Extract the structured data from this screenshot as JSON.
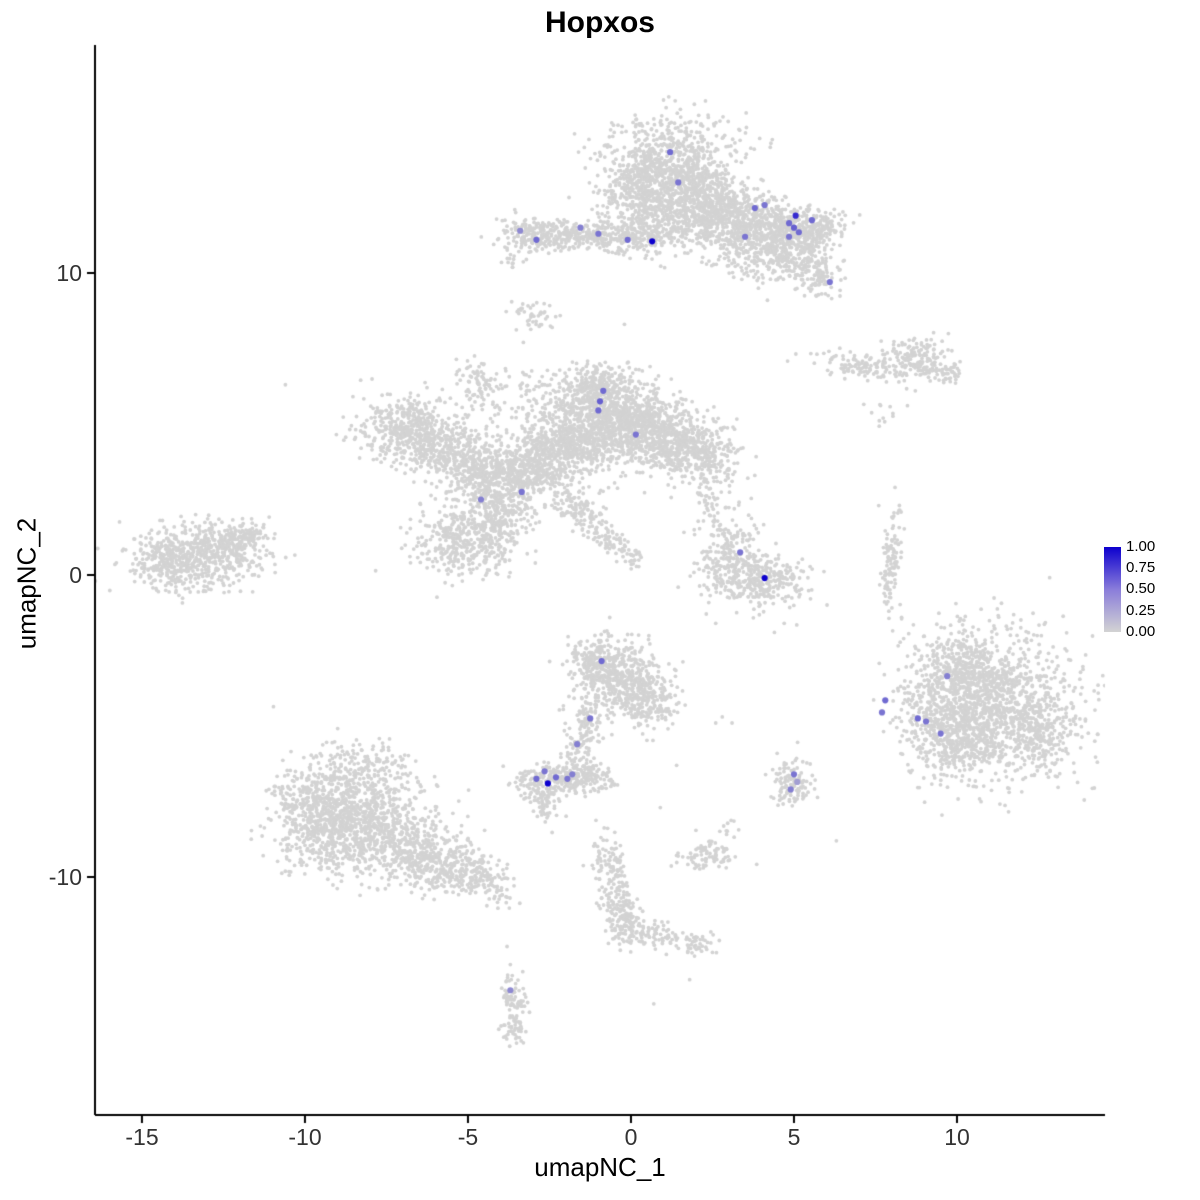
{
  "title": "Hopxos",
  "axes": {
    "x": {
      "label": "umapNC_1",
      "ticks": [
        "-15",
        "-10",
        "-5",
        "0",
        "5",
        "10"
      ],
      "tick_values": [
        -15,
        -10,
        -5,
        0,
        5,
        10
      ]
    },
    "y": {
      "label": "umapNC_2",
      "ticks": [
        "10",
        "0",
        "-10"
      ],
      "tick_values": [
        10,
        0,
        -10
      ]
    }
  },
  "legend": {
    "labels": [
      "1.00",
      "0.75",
      "0.50",
      "0.25",
      "0.00"
    ],
    "high_color": "#0d00ce",
    "mid_color": "#8a7dda",
    "low_color": "#d3d3d3"
  },
  "chart_data": {
    "type": "scatter",
    "title": "Hopxos",
    "xlabel": "umapNC_1",
    "ylabel": "umapNC_2",
    "xlim": [
      -16.44,
      14.54
    ],
    "ylim": [
      -17.88,
      17.55
    ],
    "grid": false,
    "legend_position": "right",
    "background_point_color": "#d3d3d3",
    "expression_low_color": "#d3d3d3",
    "expression_high_color": "#0d00ce",
    "color_scale_range": [
      0.0,
      1.0
    ],
    "clusters": [
      [
        1.3,
        13.4,
        1.05,
        0.85,
        950,
        0
      ],
      [
        0.3,
        12.6,
        0.5,
        0.5,
        200,
        0
      ],
      [
        2.2,
        12.3,
        0.8,
        0.55,
        350,
        0
      ],
      [
        3.2,
        11.9,
        0.6,
        0.45,
        250,
        0
      ],
      [
        4.5,
        11.5,
        0.75,
        0.45,
        350,
        0
      ],
      [
        5.6,
        11.4,
        0.45,
        0.35,
        180,
        0
      ],
      [
        5.1,
        10.5,
        0.45,
        0.45,
        140,
        0
      ],
      [
        5.8,
        9.9,
        0.35,
        0.35,
        90,
        0
      ],
      [
        4.2,
        10.7,
        0.6,
        0.5,
        140,
        0
      ],
      [
        3.4,
        10.9,
        0.7,
        0.5,
        100,
        0
      ],
      [
        2.0,
        11.5,
        0.5,
        0.4,
        120,
        0
      ],
      [
        -1.4,
        11.25,
        1.1,
        0.22,
        260,
        0
      ],
      [
        -2.95,
        11.3,
        0.5,
        0.3,
        130,
        0
      ],
      [
        0.0,
        11.15,
        0.85,
        0.28,
        170,
        0
      ],
      [
        0.7,
        11.7,
        0.5,
        0.45,
        90,
        0
      ],
      [
        -3.6,
        10.5,
        0.15,
        0.15,
        14,
        0
      ],
      [
        -3.0,
        8.6,
        0.3,
        0.22,
        45,
        0
      ],
      [
        7.0,
        6.9,
        0.75,
        0.22,
        110,
        -12
      ],
      [
        8.7,
        7.15,
        0.55,
        0.35,
        160,
        0
      ],
      [
        9.6,
        6.7,
        0.3,
        0.2,
        50,
        0
      ],
      [
        7.9,
        5.4,
        0.25,
        0.3,
        12,
        0
      ],
      [
        -6.9,
        4.9,
        0.75,
        0.55,
        400,
        0
      ],
      [
        -5.9,
        4.3,
        0.6,
        0.5,
        250,
        0
      ],
      [
        -4.8,
        3.6,
        0.65,
        0.5,
        280,
        0
      ],
      [
        -3.7,
        3.2,
        0.65,
        0.5,
        280,
        0
      ],
      [
        -2.7,
        3.7,
        0.6,
        0.55,
        300,
        0
      ],
      [
        -1.7,
        4.6,
        0.85,
        0.8,
        650,
        0
      ],
      [
        -0.6,
        5.3,
        0.8,
        0.7,
        600,
        0
      ],
      [
        0.5,
        4.8,
        0.75,
        0.6,
        450,
        0
      ],
      [
        1.5,
        4.3,
        0.65,
        0.5,
        300,
        0
      ],
      [
        2.3,
        3.9,
        0.5,
        0.4,
        180,
        0
      ],
      [
        -1.1,
        6.3,
        0.5,
        0.35,
        180,
        0
      ],
      [
        -4.6,
        6.2,
        0.3,
        0.55,
        80,
        25
      ],
      [
        -5.1,
        1.2,
        0.75,
        0.65,
        430,
        0
      ],
      [
        -4.0,
        2.0,
        0.55,
        0.5,
        220,
        0
      ],
      [
        -1.7,
        2.3,
        0.5,
        0.28,
        100,
        -35
      ],
      [
        -0.8,
        1.4,
        0.45,
        0.25,
        75,
        -35
      ],
      [
        -0.1,
        0.75,
        0.3,
        0.18,
        40,
        -35
      ],
      [
        -3.4,
        6.2,
        0.9,
        0.35,
        45,
        0
      ],
      [
        -13.4,
        0.6,
        0.95,
        0.55,
        480,
        0
      ],
      [
        -14.2,
        0.4,
        0.5,
        0.4,
        150,
        0
      ],
      [
        -12.3,
        1.0,
        0.5,
        0.35,
        160,
        0
      ],
      [
        -11.7,
        1.3,
        0.3,
        0.18,
        55,
        0
      ],
      [
        3.9,
        -0.25,
        0.8,
        0.45,
        330,
        0
      ],
      [
        3.1,
        0.6,
        0.4,
        0.5,
        150,
        0
      ],
      [
        2.9,
        1.8,
        0.55,
        0.5,
        55,
        0
      ],
      [
        2.4,
        2.7,
        0.18,
        0.35,
        28,
        0
      ],
      [
        8.0,
        0.9,
        0.16,
        0.5,
        55,
        0
      ],
      [
        7.9,
        -0.4,
        0.14,
        0.45,
        45,
        0
      ],
      [
        8.1,
        2.1,
        0.13,
        0.18,
        9,
        0
      ],
      [
        11.3,
        -4.3,
        1.25,
        1.15,
        1150,
        0
      ],
      [
        10.0,
        -5.4,
        0.65,
        0.75,
        380,
        0
      ],
      [
        10.2,
        -3.3,
        0.6,
        0.55,
        280,
        0
      ],
      [
        9.1,
        -4.5,
        0.5,
        0.8,
        120,
        0
      ],
      [
        9.6,
        -2.3,
        0.65,
        0.5,
        50,
        0
      ],
      [
        12.4,
        -5.3,
        0.5,
        0.5,
        150,
        0
      ],
      [
        -0.4,
        -3.4,
        0.7,
        0.6,
        430,
        0
      ],
      [
        0.4,
        -4.2,
        0.5,
        0.5,
        200,
        0
      ],
      [
        -1.0,
        -2.9,
        0.4,
        0.4,
        150,
        0
      ],
      [
        -1.3,
        -4.9,
        0.22,
        0.5,
        75,
        0
      ],
      [
        -1.7,
        -5.8,
        0.22,
        0.4,
        55,
        0
      ],
      [
        -2.4,
        -6.8,
        0.65,
        0.33,
        240,
        0
      ],
      [
        -2.6,
        -7.6,
        0.2,
        0.3,
        50,
        0
      ],
      [
        -1.3,
        -6.7,
        0.3,
        0.25,
        70,
        0
      ],
      [
        -0.75,
        -6.8,
        0.15,
        0.15,
        18,
        0
      ],
      [
        4.9,
        -6.9,
        0.33,
        0.38,
        110,
        0
      ],
      [
        -8.7,
        -7.5,
        1.05,
        0.85,
        650,
        0
      ],
      [
        -7.6,
        -8.6,
        0.85,
        0.75,
        450,
        0
      ],
      [
        -9.5,
        -8.7,
        0.6,
        0.55,
        230,
        0
      ],
      [
        -6.4,
        -9.3,
        0.65,
        0.5,
        230,
        0
      ],
      [
        -5.3,
        -9.7,
        0.55,
        0.4,
        170,
        0
      ],
      [
        -4.6,
        -10.1,
        0.4,
        0.3,
        80,
        0
      ],
      [
        -8.2,
        -6.3,
        0.8,
        0.4,
        70,
        0
      ],
      [
        -10.1,
        -7.6,
        0.5,
        0.6,
        120,
        0
      ],
      [
        -3.9,
        -10.6,
        0.25,
        0.25,
        22,
        0
      ],
      [
        -0.7,
        -9.5,
        0.25,
        0.5,
        75,
        0
      ],
      [
        -0.45,
        -10.5,
        0.25,
        0.5,
        75,
        0
      ],
      [
        -0.15,
        -11.5,
        0.3,
        0.4,
        120,
        0
      ],
      [
        0.8,
        -11.9,
        0.5,
        0.22,
        70,
        -15
      ],
      [
        1.9,
        -12.25,
        0.4,
        0.18,
        45,
        0
      ],
      [
        2.4,
        -9.3,
        0.45,
        0.28,
        85,
        0
      ],
      [
        2.95,
        -8.45,
        0.15,
        0.15,
        10,
        0
      ],
      [
        -3.6,
        -14.2,
        0.24,
        0.5,
        85,
        0
      ],
      [
        -3.55,
        -15.05,
        0.2,
        0.22,
        28,
        0
      ]
    ],
    "singles": [
      [
        -10.6,
        6.3
      ],
      [
        -1.9,
        12.5
      ],
      [
        2.1,
        2.9
      ],
      [
        4.4,
        -1.9
      ],
      [
        4.7,
        -1.6
      ],
      [
        8.3,
        -1.4
      ],
      [
        2.6,
        -1.6
      ],
      [
        2.8,
        -4.7
      ],
      [
        3.1,
        -4.9
      ],
      [
        2.6,
        -4.9
      ],
      [
        1.4,
        -6.3
      ],
      [
        0.9,
        -7.7
      ],
      [
        -3.8,
        -12.3
      ],
      [
        -3.7,
        -12.9
      ],
      [
        6.3,
        -8.8
      ],
      [
        7.6,
        2.3
      ],
      [
        8.1,
        2.9
      ],
      [
        -0.2,
        8.3
      ],
      [
        -3.3,
        7.7
      ],
      [
        0.7,
        -14.2
      ],
      [
        1.8,
        -13.4
      ]
    ],
    "expressing_cells": [
      {
        "x": 1.2,
        "y": 14.0,
        "value": 0.5
      },
      {
        "x": 1.45,
        "y": 13.0,
        "value": 0.45
      },
      {
        "x": 3.8,
        "y": 12.15,
        "value": 0.5
      },
      {
        "x": 4.1,
        "y": 12.25,
        "value": 0.45
      },
      {
        "x": 5.05,
        "y": 11.9,
        "value": 0.8
      },
      {
        "x": 4.85,
        "y": 11.65,
        "value": 0.5
      },
      {
        "x": 5.0,
        "y": 11.5,
        "value": 0.55
      },
      {
        "x": 5.15,
        "y": 11.35,
        "value": 0.5
      },
      {
        "x": 4.85,
        "y": 11.2,
        "value": 0.45
      },
      {
        "x": 5.55,
        "y": 11.75,
        "value": 0.5
      },
      {
        "x": 3.5,
        "y": 11.2,
        "value": 0.45
      },
      {
        "x": 0.65,
        "y": 11.05,
        "value": 1.0
      },
      {
        "x": -0.1,
        "y": 11.1,
        "value": 0.5
      },
      {
        "x": -1.0,
        "y": 11.3,
        "value": 0.45
      },
      {
        "x": -1.55,
        "y": 11.5,
        "value": 0.4
      },
      {
        "x": -2.9,
        "y": 11.1,
        "value": 0.5
      },
      {
        "x": -3.4,
        "y": 11.4,
        "value": 0.35
      },
      {
        "x": 6.1,
        "y": 9.7,
        "value": 0.45
      },
      {
        "x": -0.85,
        "y": 6.1,
        "value": 0.5
      },
      {
        "x": -0.95,
        "y": 5.75,
        "value": 0.55
      },
      {
        "x": -1.0,
        "y": 5.45,
        "value": 0.5
      },
      {
        "x": 0.15,
        "y": 4.65,
        "value": 0.45
      },
      {
        "x": -3.35,
        "y": 2.75,
        "value": 0.45
      },
      {
        "x": -4.6,
        "y": 2.5,
        "value": 0.4
      },
      {
        "x": 3.35,
        "y": 0.75,
        "value": 0.45
      },
      {
        "x": 4.1,
        "y": -0.1,
        "value": 1.0
      },
      {
        "x": -0.9,
        "y": -2.85,
        "value": 0.5
      },
      {
        "x": -1.25,
        "y": -4.75,
        "value": 0.45
      },
      {
        "x": -1.65,
        "y": -5.6,
        "value": 0.4
      },
      {
        "x": -2.65,
        "y": -6.5,
        "value": 0.45
      },
      {
        "x": -2.9,
        "y": -6.75,
        "value": 0.5
      },
      {
        "x": -2.55,
        "y": -6.9,
        "value": 1.0
      },
      {
        "x": -2.3,
        "y": -6.7,
        "value": 0.5
      },
      {
        "x": -1.95,
        "y": -6.75,
        "value": 0.45
      },
      {
        "x": -1.8,
        "y": -6.6,
        "value": 0.4
      },
      {
        "x": 7.8,
        "y": -4.15,
        "value": 0.5
      },
      {
        "x": 7.7,
        "y": -4.55,
        "value": 0.45
      },
      {
        "x": 8.8,
        "y": -4.75,
        "value": 0.5
      },
      {
        "x": 9.05,
        "y": -4.85,
        "value": 0.45
      },
      {
        "x": 9.5,
        "y": -5.25,
        "value": 0.45
      },
      {
        "x": 9.7,
        "y": -3.35,
        "value": 0.4
      },
      {
        "x": 5.0,
        "y": -6.6,
        "value": 0.45
      },
      {
        "x": 5.1,
        "y": -6.85,
        "value": 0.25
      },
      {
        "x": 4.9,
        "y": -7.1,
        "value": 0.4
      },
      {
        "x": -3.7,
        "y": -13.75,
        "value": 0.35
      }
    ]
  }
}
